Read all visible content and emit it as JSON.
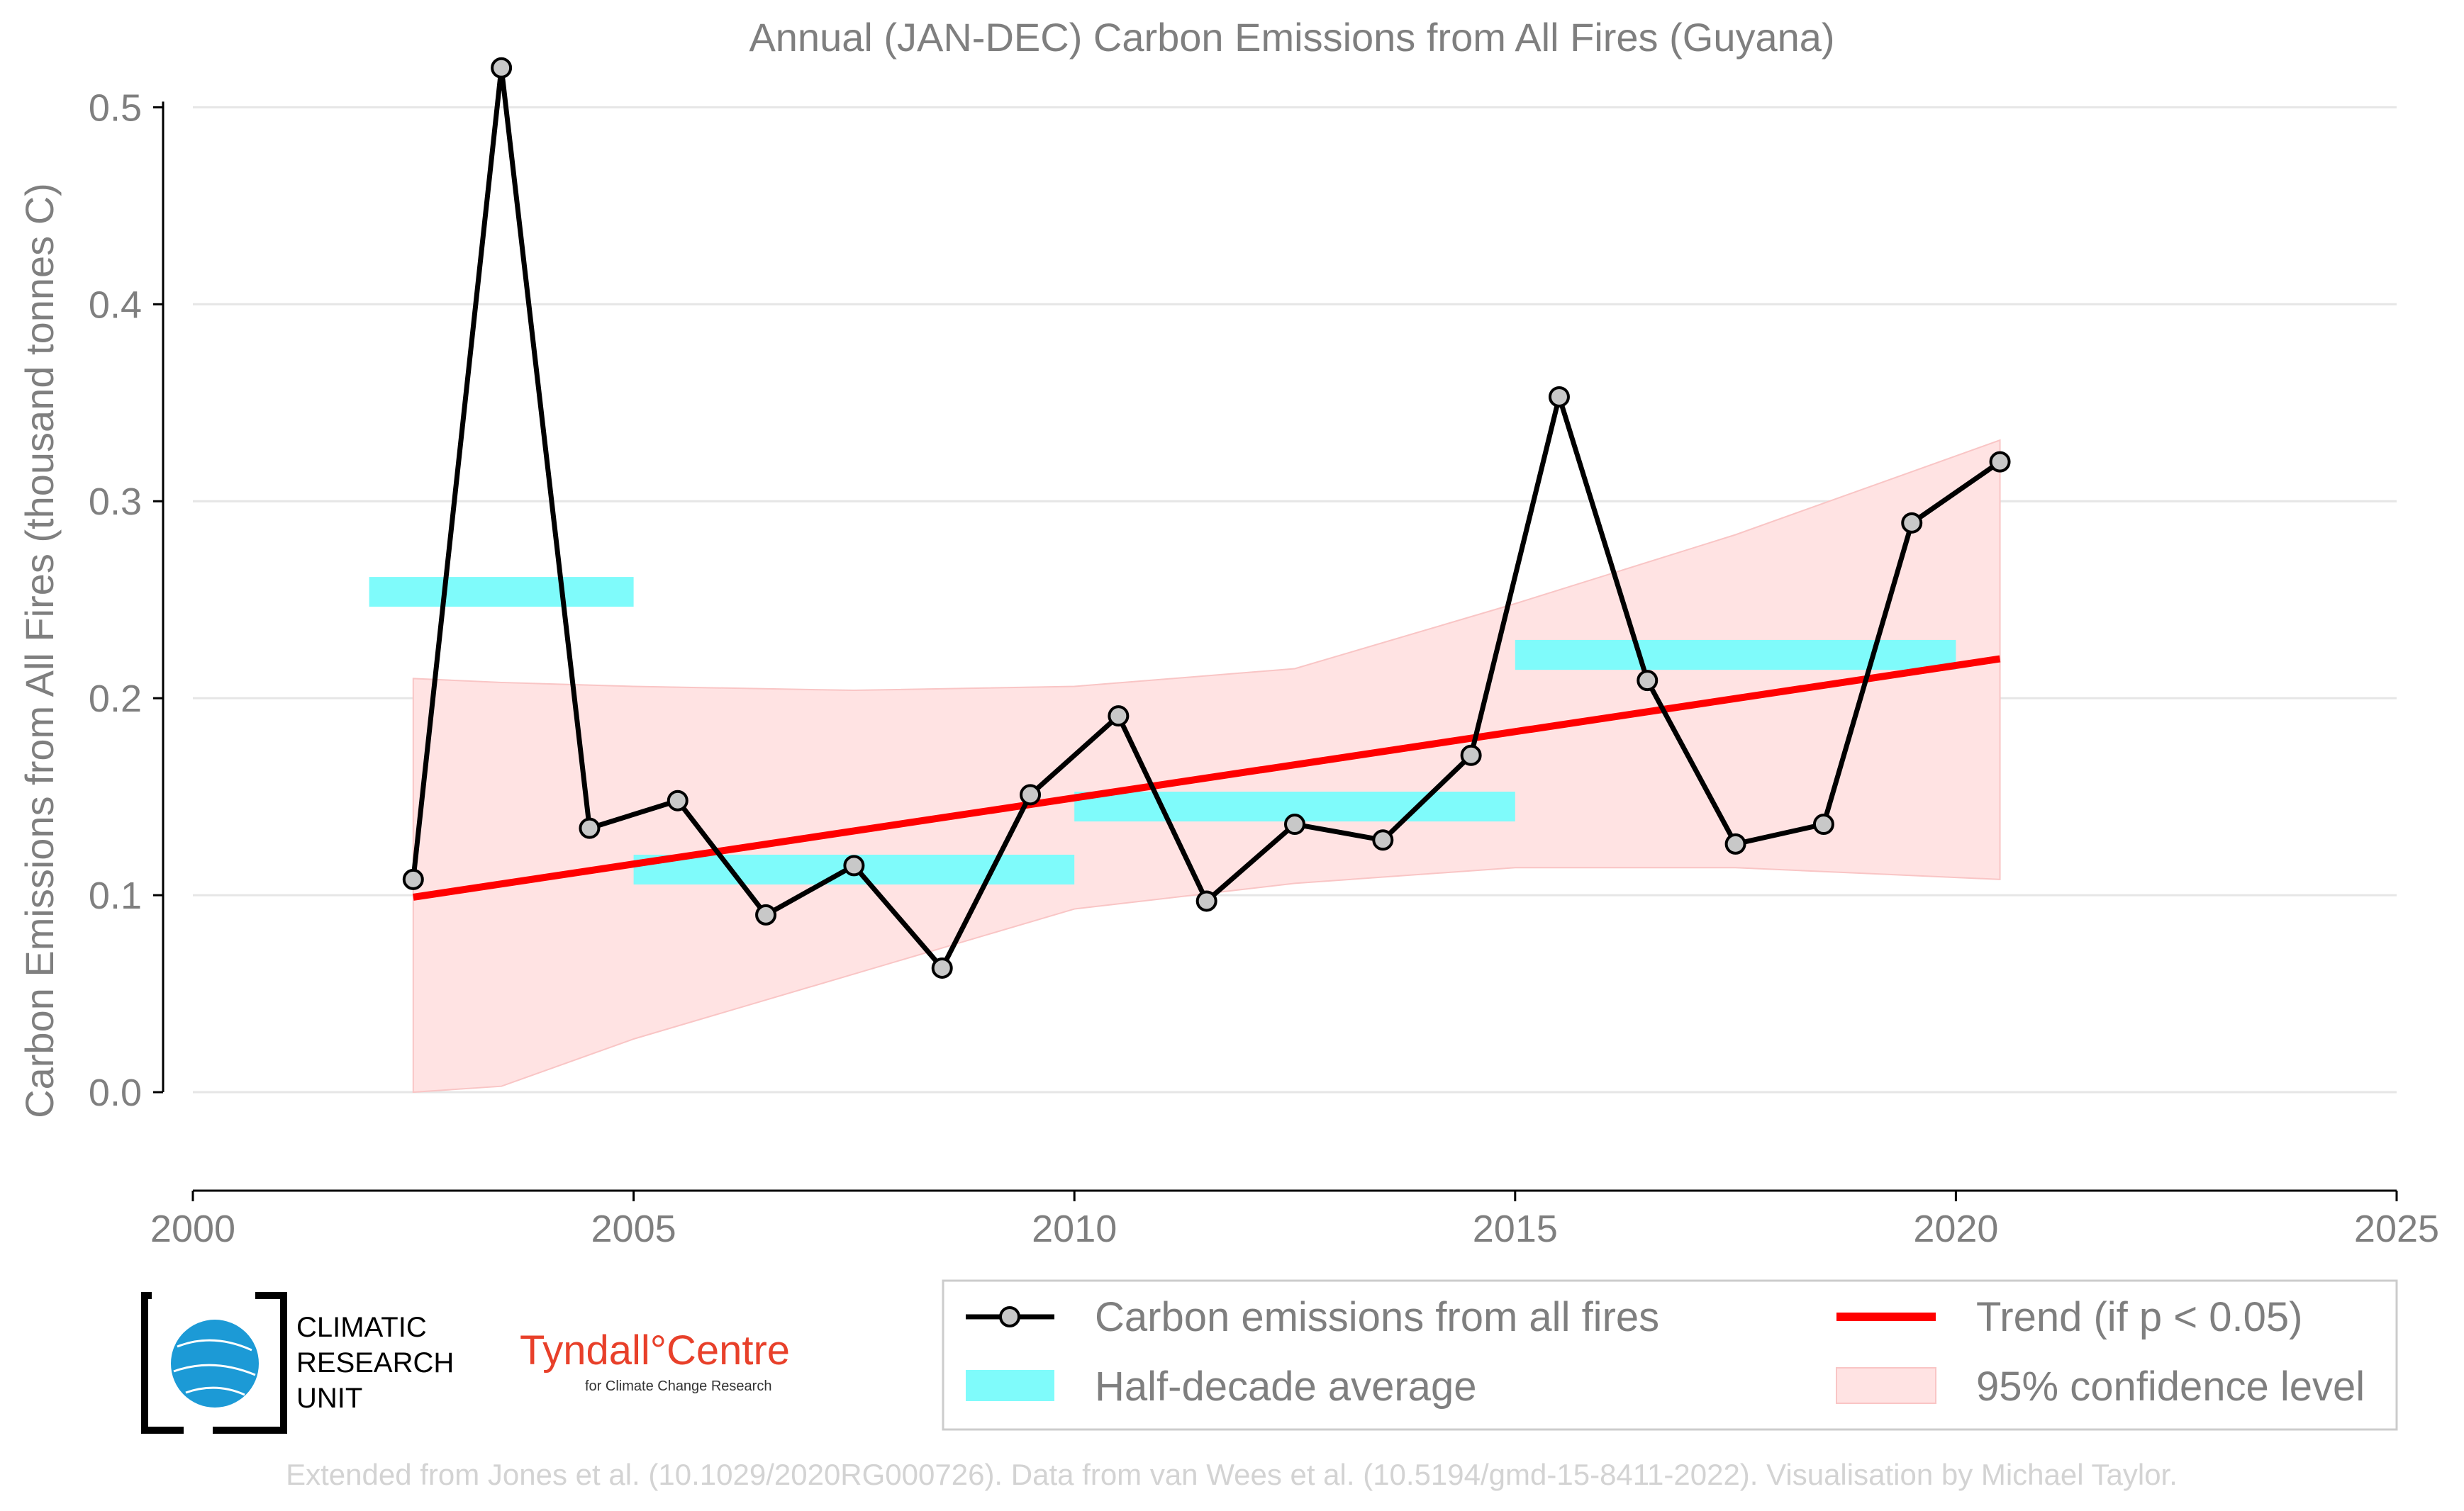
{
  "chart_data": {
    "type": "line",
    "title": "Annual (JAN-DEC) Carbon Emissions from All Fires (Guyana)",
    "xlabel": "",
    "ylabel": "Carbon Emissions from All Fires (thousand tonnes C)",
    "xlim": [
      2000,
      2025
    ],
    "ylim": [
      -0.05,
      0.53
    ],
    "x_ticks": [
      2000,
      2005,
      2010,
      2015,
      2020,
      2025
    ],
    "y_ticks": [
      0.0,
      0.1,
      0.2,
      0.3,
      0.4,
      0.5
    ],
    "x_tick_labels": [
      "2000",
      "2005",
      "2010",
      "2015",
      "2020",
      "2025"
    ],
    "y_tick_labels": [
      "0.0",
      "0.1",
      "0.2",
      "0.3",
      "0.4",
      "0.5"
    ],
    "grid": "horizontal",
    "series": [
      {
        "name": "Carbon emissions from all fires",
        "color": "#000000",
        "marker_fill": "#c8c8c8",
        "x": [
          2002.5,
          2003.5,
          2004.5,
          2005.5,
          2006.5,
          2007.5,
          2008.5,
          2009.5,
          2010.5,
          2011.5,
          2012.5,
          2013.5,
          2014.5,
          2015.5,
          2016.5,
          2017.5,
          2018.5,
          2019.5,
          2020.5
        ],
        "values": [
          0.108,
          0.52,
          0.134,
          0.148,
          0.09,
          0.115,
          0.063,
          0.151,
          0.191,
          0.097,
          0.136,
          0.128,
          0.171,
          0.353,
          0.209,
          0.126,
          0.136,
          0.289,
          0.32
        ]
      },
      {
        "name": "Half-decade average",
        "color": "#7ffbfb",
        "segments": [
          {
            "x_start": 2002,
            "x_end": 2005,
            "value": 0.254
          },
          {
            "x_start": 2005,
            "x_end": 2010,
            "value": 0.113
          },
          {
            "x_start": 2010,
            "x_end": 2015,
            "value": 0.145
          },
          {
            "x_start": 2015,
            "x_end": 2020,
            "value": 0.222
          }
        ]
      },
      {
        "name": "Trend (if p < 0.05)",
        "color": "#ff0000",
        "x": [
          2002.5,
          2020.5
        ],
        "values": [
          0.099,
          0.22
        ]
      },
      {
        "name": "95% confidence level",
        "color": "#ffe3e3",
        "x": [
          2002.5,
          2003.5,
          2005,
          2007.5,
          2010,
          2012.5,
          2015,
          2017.5,
          2020.5
        ],
        "upper": [
          0.21,
          0.208,
          0.206,
          0.204,
          0.206,
          0.215,
          0.248,
          0.283,
          0.331
        ],
        "lower": [
          0.0,
          0.003,
          0.027,
          0.06,
          0.093,
          0.106,
          0.114,
          0.114,
          0.108
        ]
      }
    ],
    "legend": {
      "position": "bottom-right",
      "entries": [
        "Carbon emissions from all fires",
        "Trend (if p < 0.05)",
        "Half-decade average",
        "95% confidence level"
      ]
    }
  },
  "logos": {
    "cru_lines": [
      "CLIMATIC",
      "RESEARCH",
      "UNIT"
    ],
    "tyndall_main": "Tyndall°Centre",
    "tyndall_sub": "for Climate Change Research"
  },
  "credit": "Extended from Jones et al. (10.1029/2020RG000726). Data from van Wees et al. (10.5194/gmd-15-8411-2022). Visualisation by Michael Taylor."
}
